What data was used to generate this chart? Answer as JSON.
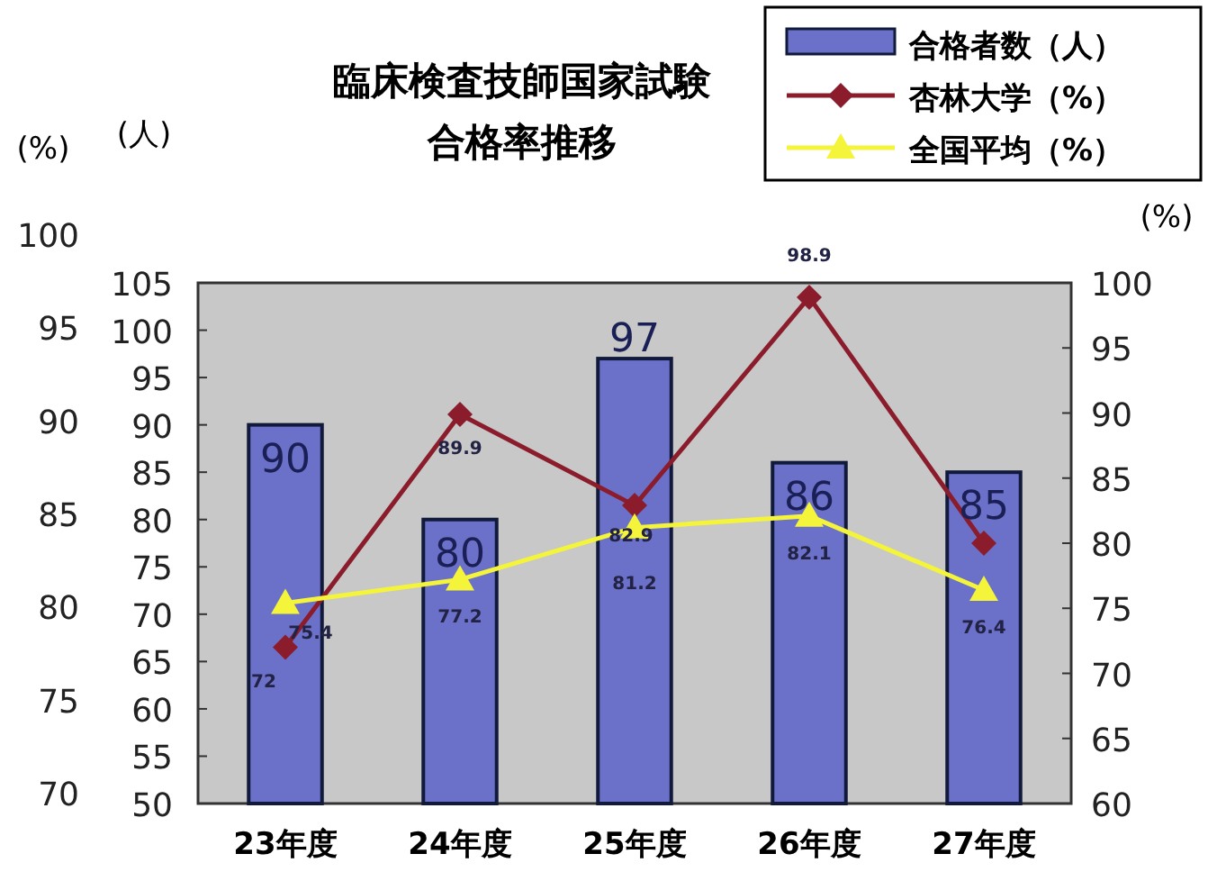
{
  "chart_data": {
    "type": "bar",
    "title": "臨床検査技師国家試験",
    "subtitle": "合格率推移",
    "categories": [
      "23年度",
      "24年度",
      "25年度",
      "26年度",
      "27年度"
    ],
    "ylabel": "(人)",
    "y2label": "(%)",
    "y3label": "(%)",
    "ylim": [
      50,
      105
    ],
    "yticks": [
      50,
      55,
      60,
      65,
      70,
      75,
      80,
      85,
      90,
      95,
      100,
      105
    ],
    "y2lim": [
      60,
      100
    ],
    "y2ticks": [
      60,
      65,
      70,
      75,
      80,
      85,
      90,
      95,
      100
    ],
    "y3lim": [
      70,
      100
    ],
    "y3ticks": [
      70,
      75,
      80,
      85,
      90,
      95,
      100
    ],
    "legend": "top right",
    "grid": false,
    "series": [
      {
        "name": "合格者数（人）",
        "color": "#6b70c8",
        "values": [
          90,
          80,
          97,
          86,
          85
        ],
        "value_labels": [
          "90",
          "80",
          "97",
          "86",
          "85"
        ]
      },
      {
        "name": "杏林大学（%）",
        "type": "line",
        "axis": "y2",
        "marker": "diamond",
        "color": "#8b1c2c",
        "values": [
          72,
          89.9,
          82.9,
          98.9,
          80
        ],
        "value_labels": [
          "72",
          "89.9",
          "82.9",
          "98.9",
          null
        ]
      },
      {
        "name": "全国平均（%）",
        "type": "line",
        "axis": "y2",
        "marker": "triangle",
        "color": "#f4f43a",
        "values": [
          75.4,
          77.2,
          81.2,
          82.1,
          76.4
        ],
        "value_labels": [
          "75.4",
          "77.2",
          "81.2",
          "82.1",
          "76.4"
        ]
      }
    ]
  }
}
